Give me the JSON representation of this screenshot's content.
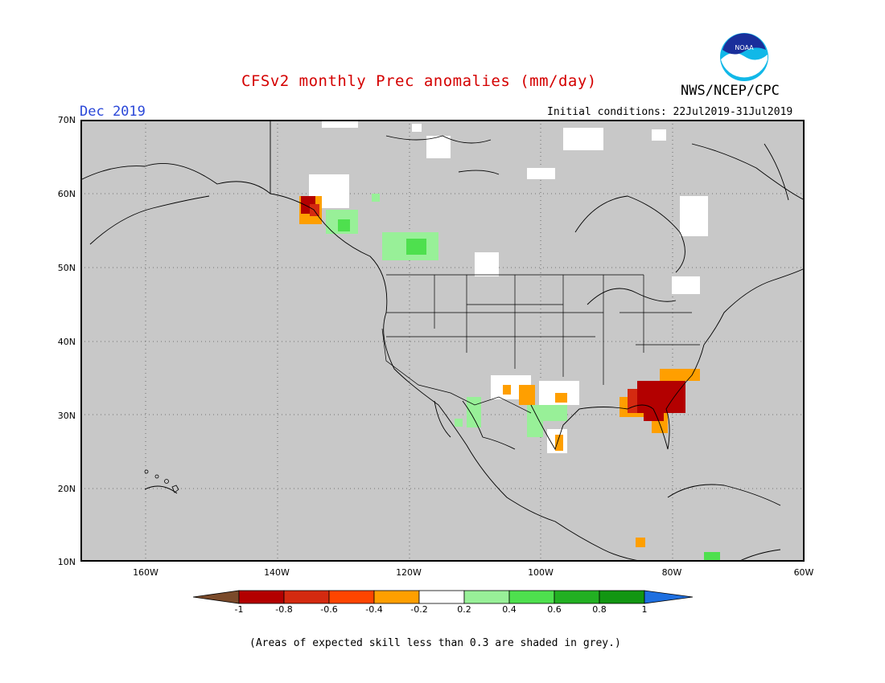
{
  "header": {
    "title": "CFSv2 monthly Prec anomalies (mm/day)",
    "agency": "NWS/NCEP/CPC",
    "logo_text": "NOAA",
    "month": "Dec 2019",
    "initial_conditions": "Initial conditions: 22Jul2019-31Jul2019"
  },
  "map": {
    "type": "map",
    "lat_ticks": [
      "70N",
      "60N",
      "50N",
      "40N",
      "30N",
      "20N",
      "10N"
    ],
    "lon_ticks": [
      "160W",
      "140W",
      "120W",
      "100W",
      "80W",
      "60W"
    ],
    "lat_range": [
      10,
      70
    ],
    "lon_range": [
      -170,
      -60
    ],
    "grid": true,
    "skill_mask_color": "#c8c8c8",
    "ocean_land_default": "grey"
  },
  "colorbar": {
    "tick_labels": [
      "-1",
      "-0.8",
      "-0.6",
      "-0.4",
      "-0.2",
      "0.2",
      "0.4",
      "0.6",
      "0.8",
      "1"
    ],
    "colors": [
      "#7a4a2a",
      "#b30000",
      "#d42a10",
      "#ff4500",
      "#ff9f00",
      "#ffffff",
      "#98f098",
      "#4ee04e",
      "#22b022",
      "#129612",
      "#1e6fe0"
    ]
  },
  "footnote": "(Areas of expected skill less than 0.3 are shaded in grey.)"
}
